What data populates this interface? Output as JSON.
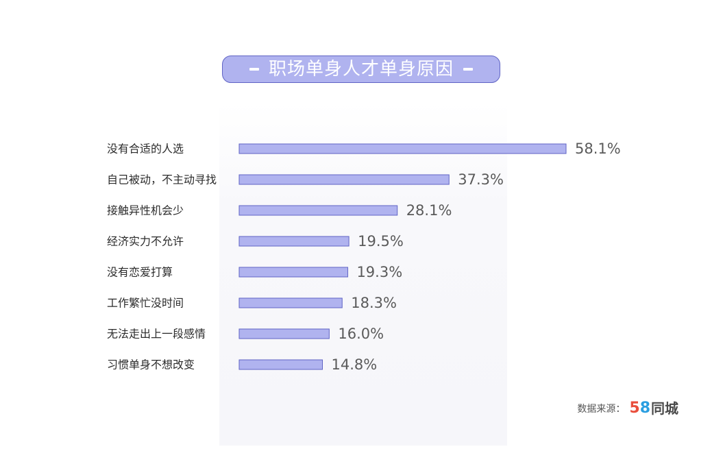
{
  "chart_data": {
    "type": "bar",
    "orientation": "horizontal",
    "title": "职场单身人才单身原因",
    "categories": [
      "没有合适的人选",
      "自己被动，不主动寻找",
      "接触异性机会少",
      "经济实力不允许",
      "没有恋爱打算",
      "工作繁忙没时间",
      "无法走出上一段感情",
      "习惯单身不想改变"
    ],
    "values": [
      58.1,
      37.3,
      28.1,
      19.5,
      19.3,
      18.3,
      16.0,
      14.8
    ],
    "value_labels": [
      "58.1%",
      "37.3%",
      "28.1%",
      "19.5%",
      "19.3%",
      "18.3%",
      "16.0%",
      "14.8%"
    ],
    "xlabel": "",
    "ylabel": "",
    "grid": false,
    "legend": "none",
    "colors": {
      "bar_fill": "#b0b3ef",
      "bar_border": "#5f63c4"
    }
  },
  "source": {
    "label": "数据来源：",
    "logo_digit_5": "5",
    "logo_digit_8": "8",
    "logo_name": "同城"
  },
  "colors": {
    "pill_fill": "#b0b3ef",
    "pill_border": "#5f63c4",
    "logo_red": "#e94e3c",
    "logo_blue": "#2a9ee0"
  }
}
